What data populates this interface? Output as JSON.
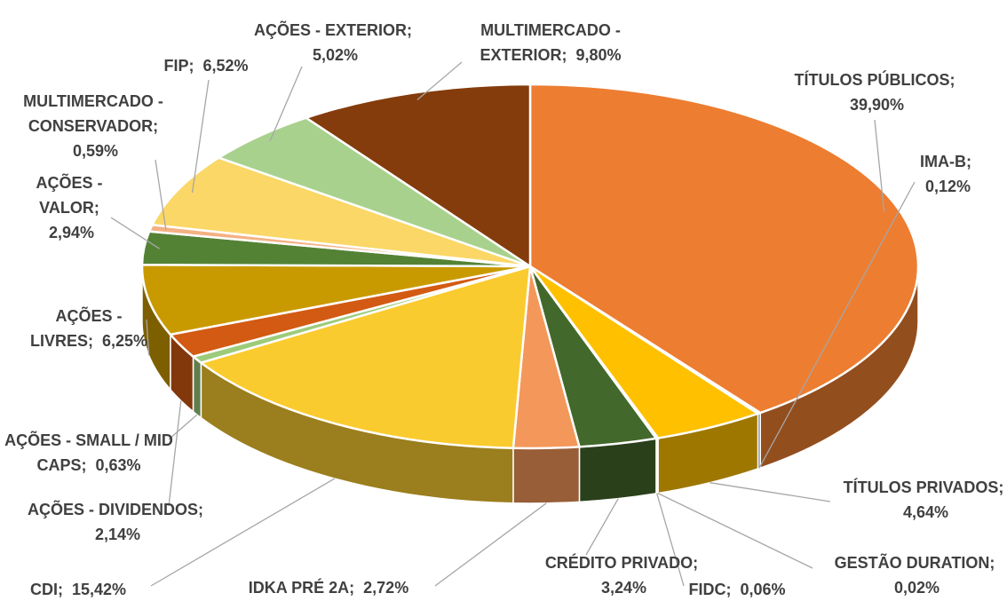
{
  "chart_data": {
    "type": "pie3d",
    "categories": [
      "TÍTULOS PÚBLICOS;",
      "IMA-B;",
      "TÍTULOS PRIVADOS;",
      "GESTÃO DURATION;",
      "FIDC;",
      "CRÉDITO PRIVADO;",
      "IDKA PRÉ 2A;",
      "CDI;",
      "AÇÕES - SMALL / MID CAPS;",
      "AÇÕES - DIVIDENDOS;",
      "AÇÕES - LIVRES;",
      "AÇÕES - VALOR;",
      "MULTIMERCADO - CONSERVADOR;",
      "FIP;",
      "AÇÕES - EXTERIOR;",
      "MULTIMERCADO - EXTERIOR;"
    ],
    "values": [
      39.9,
      0.12,
      4.64,
      0.02,
      0.06,
      3.24,
      2.72,
      15.42,
      0.63,
      2.14,
      6.25,
      2.94,
      0.59,
      6.52,
      5.02,
      9.8
    ],
    "value_labels": [
      "39,90%",
      "0,12%",
      "4,64%",
      "0,02%",
      "0,06%",
      "3,24%",
      "2,72%",
      "15,42%",
      "0,63%",
      "2,14%",
      "6,25%",
      "2,94%",
      "0,59%",
      "6,52%",
      "5,02%",
      "9,80%"
    ],
    "colors": [
      "#ED7D31",
      "#A5A5A5",
      "#FFC000",
      "#5B9BD5",
      "#70AD47",
      "#43682B",
      "#F4975A",
      "#FACB2E",
      "#9DCB7A",
      "#D35A12",
      "#C99A00",
      "#548235",
      "#F4B183",
      "#FAD766",
      "#A9D18E",
      "#843C0C"
    ]
  }
}
